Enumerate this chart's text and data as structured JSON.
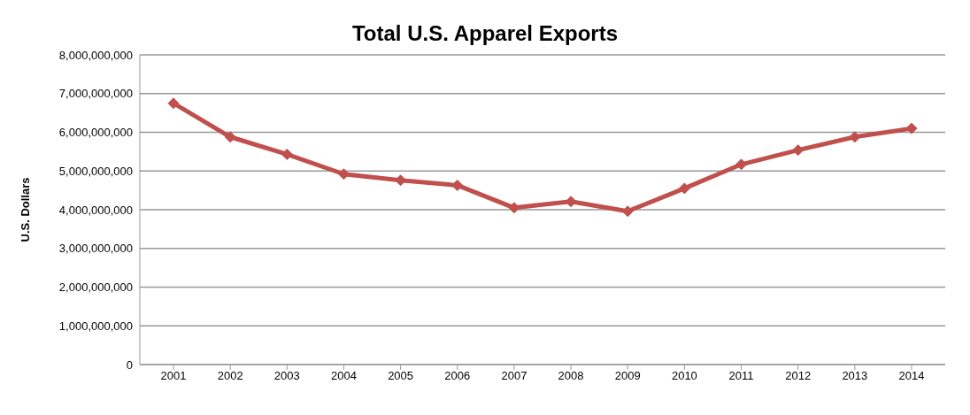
{
  "chart_data": {
    "type": "line",
    "title": "Total U.S. Apparel Exports",
    "ylabel": "U.S. Dollars",
    "categories": [
      "2001",
      "2002",
      "2003",
      "2004",
      "2005",
      "2006",
      "2007",
      "2008",
      "2009",
      "2010",
      "2011",
      "2012",
      "2013",
      "2014"
    ],
    "series": [
      {
        "color": "#c0504d",
        "values": [
          6750000000,
          5880000000,
          5430000000,
          4920000000,
          4760000000,
          4630000000,
          4050000000,
          4210000000,
          3960000000,
          4550000000,
          5170000000,
          5540000000,
          5880000000,
          6100000000
        ]
      }
    ],
    "ylim": [
      0,
      8000000000
    ],
    "yticks": [
      0,
      {
        "value": 1000000000,
        "label": "1,000,000,000"
      },
      {
        "value": 2000000000,
        "label": "2,000,000,000"
      },
      {
        "value": 3000000000,
        "label": "3,000,000,000"
      },
      {
        "value": 4000000000,
        "label": "4,000,000,000"
      },
      {
        "value": 5000000000,
        "label": "5,000,000,000"
      },
      {
        "value": 6000000000,
        "label": "6,000,000,000"
      },
      {
        "value": 7000000000,
        "label": "7,000,000,000"
      },
      {
        "value": 8000000000,
        "label": "8,000,000,000"
      }
    ],
    "grid": "y",
    "legend": false,
    "marker": "diamond",
    "line_style": "solid"
  }
}
